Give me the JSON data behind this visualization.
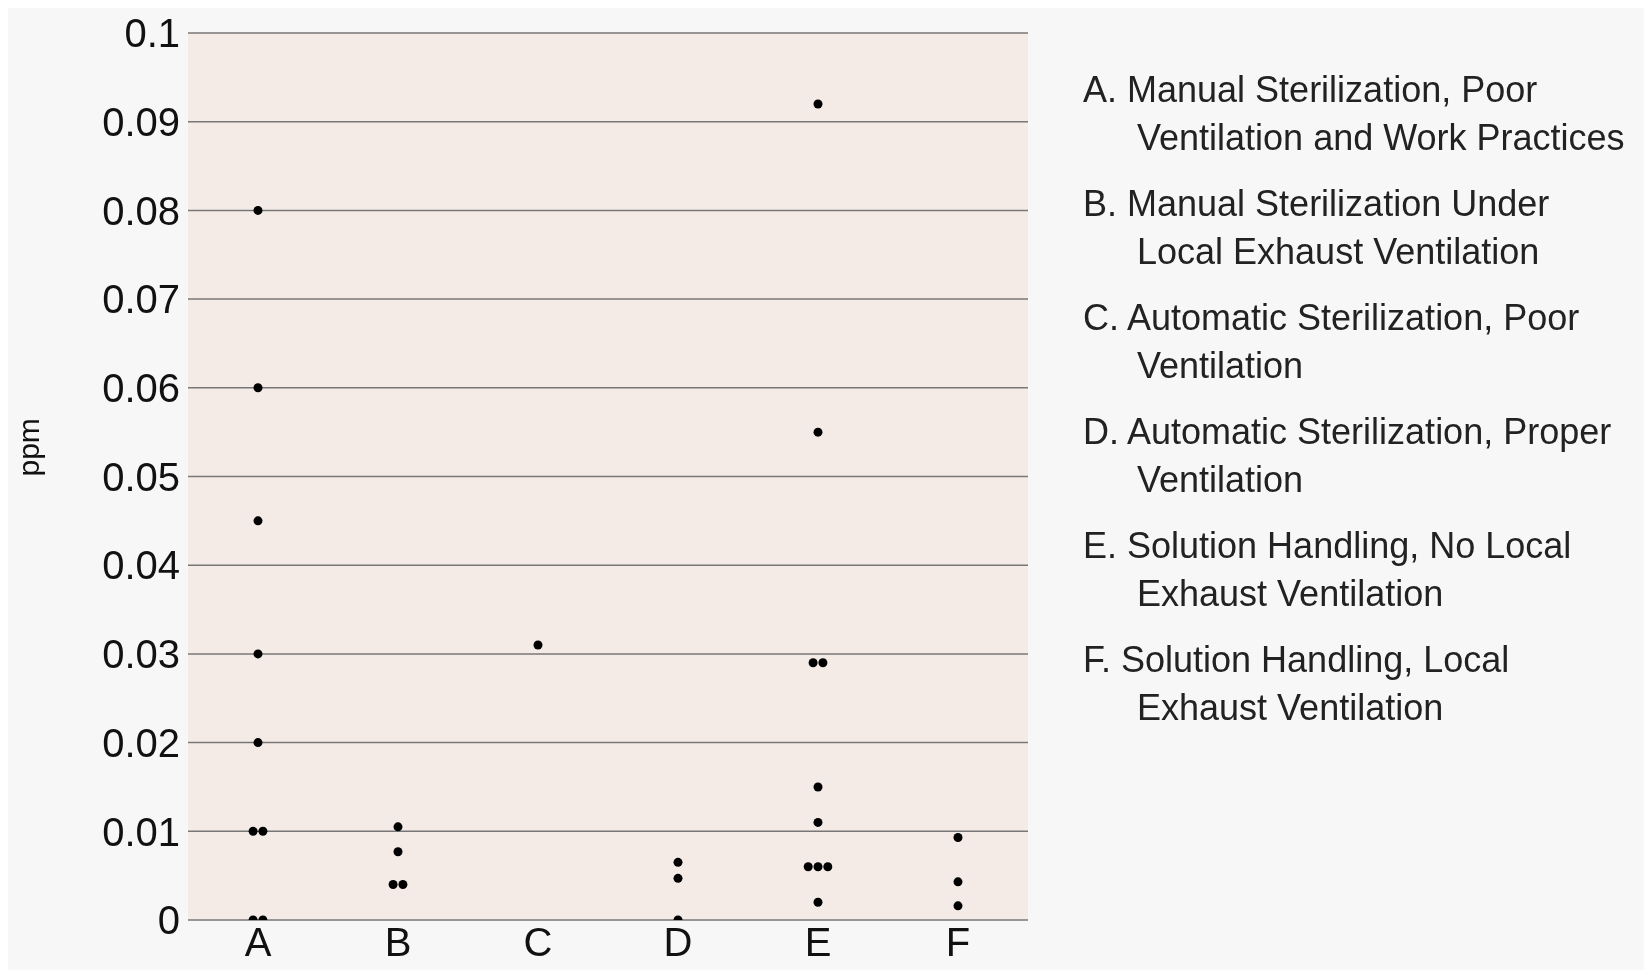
{
  "chart_data": {
    "type": "scatter",
    "ylabel": "ppm",
    "categories": [
      "A",
      "B",
      "C",
      "D",
      "E",
      "F"
    ],
    "series": [
      {
        "color": "#000000",
        "x": [
          "A",
          "A",
          "A",
          "A",
          "A",
          "A",
          "A",
          "A",
          "A",
          "B",
          "B",
          "B",
          "B",
          "C",
          "D",
          "D",
          "D",
          "E",
          "E",
          "E",
          "E",
          "E",
          "E",
          "E",
          "E",
          "E",
          "E",
          "F",
          "F",
          "F"
        ],
        "values": [
          0.08,
          0.06,
          0.045,
          0.03,
          0.02,
          0.01,
          0.01,
          0,
          0,
          0.0105,
          0.0077,
          0.004,
          0.004,
          0.031,
          0.0065,
          0.0047,
          0,
          0.092,
          0.055,
          0.029,
          0.029,
          0.015,
          0.011,
          0.006,
          0.006,
          0.006,
          0.002,
          0.0093,
          0.0043,
          0.0016
        ]
      }
    ],
    "ylim": [
      0,
      0.1
    ],
    "yticks": [
      0,
      0.01,
      0.02,
      0.03,
      0.04,
      0.05,
      0.06,
      0.07,
      0.08,
      0.09,
      0.1
    ],
    "grid": "y",
    "marker": "circle",
    "annotations": [
      "A. Manual Sterilization, Poor Ventilation and Work Practices",
      "B. Manual Sterilization Under Local Exhaust Ventilation",
      "C. Automatic Sterilization, Poor Ventilation",
      "D. Automatic Sterilization, Proper Ventilation",
      "E. Solution Handling, No Local Exhaust Ventilation",
      "F. Solution Handling, Local Exhaust Ventilation"
    ]
  }
}
